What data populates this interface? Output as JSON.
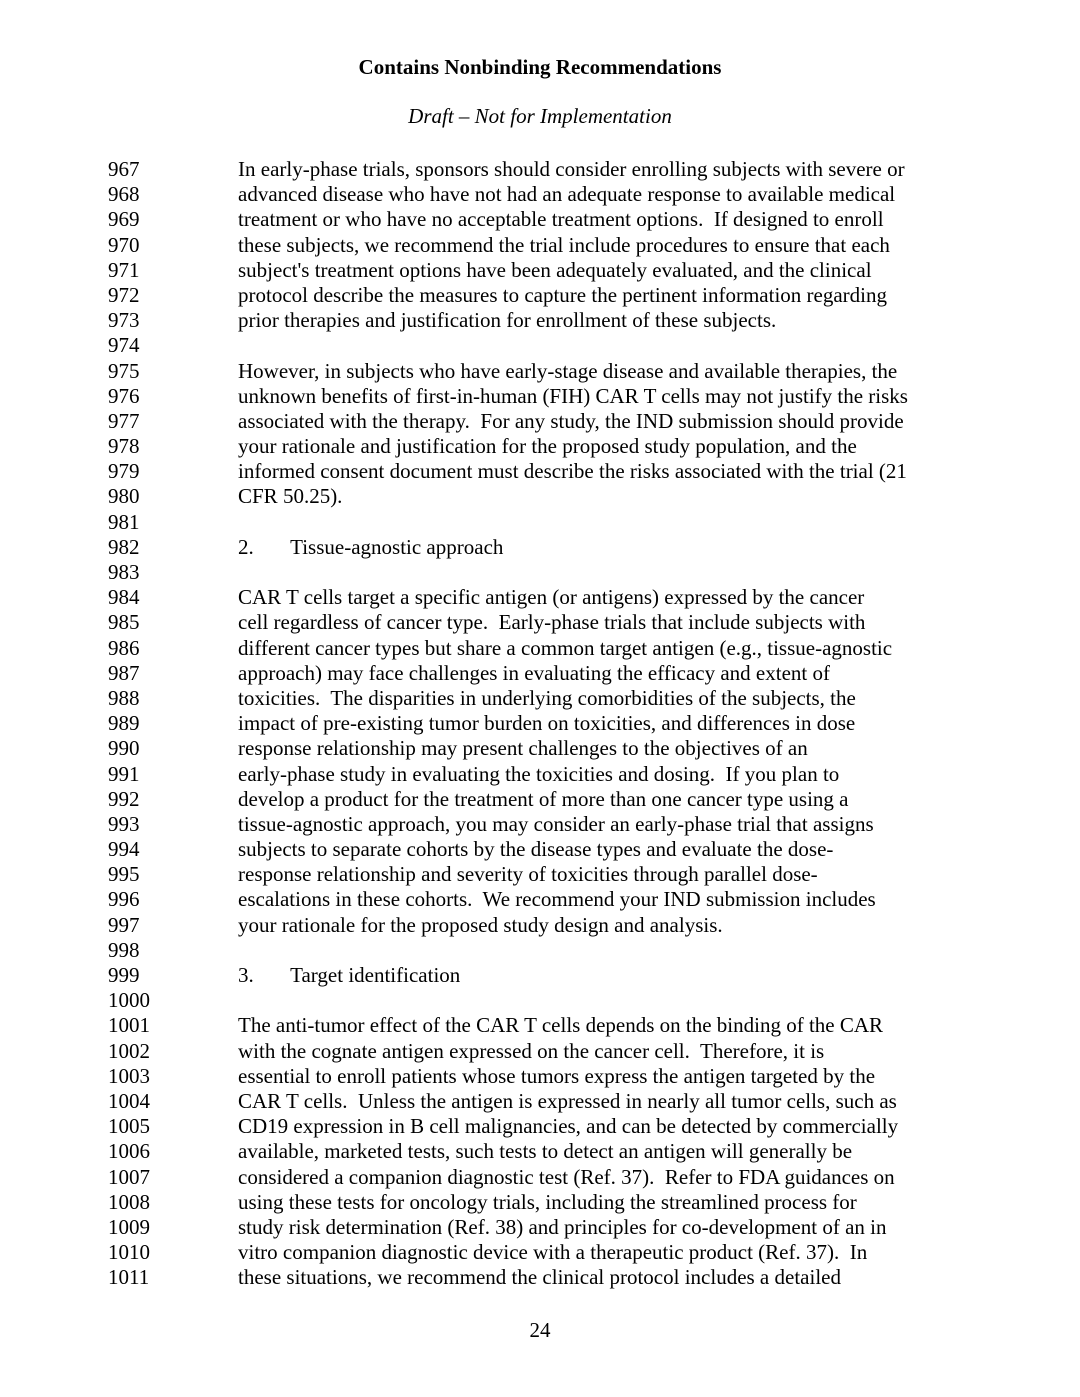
{
  "header": {
    "title_bold": "Contains Nonbinding Recommendations",
    "title_italic": "Draft – Not for Implementation"
  },
  "page_number": "24",
  "style": {
    "font_family": "Times New Roman",
    "font_size_pt": 16,
    "line_number_start": 967,
    "line_number_end": 1011,
    "background_color": "#ffffff",
    "text_color": "#000000"
  },
  "lines": [
    {
      "n": "967",
      "t": "In early-phase trials, sponsors should consider enrolling subjects with severe or"
    },
    {
      "n": "968",
      "t": "advanced disease who have not had an adequate response to available medical"
    },
    {
      "n": "969",
      "t": "treatment or who have no acceptable treatment options.  If designed to enroll"
    },
    {
      "n": "970",
      "t": "these subjects, we recommend the trial include procedures to ensure that each"
    },
    {
      "n": "971",
      "t": "subject's treatment options have been adequately evaluated, and the clinical"
    },
    {
      "n": "972",
      "t": "protocol describe the measures to capture the pertinent information regarding"
    },
    {
      "n": "973",
      "t": "prior therapies and justification for enrollment of these subjects."
    },
    {
      "n": "974",
      "t": ""
    },
    {
      "n": "975",
      "t": "However, in subjects who have early-stage disease and available therapies, the"
    },
    {
      "n": "976",
      "t": "unknown benefits of first-in-human (FIH) CAR T cells may not justify the risks"
    },
    {
      "n": "977",
      "t": "associated with the therapy.  For any study, the IND submission should provide"
    },
    {
      "n": "978",
      "t": "your rationale and justification for the proposed study population, and the"
    },
    {
      "n": "979",
      "t": "informed consent document must describe the risks associated with the trial (21"
    },
    {
      "n": "980",
      "t": "CFR 50.25)."
    },
    {
      "n": "981",
      "t": ""
    },
    {
      "n": "982",
      "t": "2.       Tissue-agnostic approach"
    },
    {
      "n": "983",
      "t": ""
    },
    {
      "n": "984",
      "t": "CAR T cells target a specific antigen (or antigens) expressed by the cancer"
    },
    {
      "n": "985",
      "t": "cell regardless of cancer type.  Early-phase trials that include subjects with"
    },
    {
      "n": "986",
      "t": "different cancer types but share a common target antigen (e.g., tissue-agnostic"
    },
    {
      "n": "987",
      "t": "approach) may face challenges in evaluating the efficacy and extent of"
    },
    {
      "n": "988",
      "t": "toxicities.  The disparities in underlying comorbidities of the subjects, the"
    },
    {
      "n": "989",
      "t": "impact of pre-existing tumor burden on toxicities, and differences in dose"
    },
    {
      "n": "990",
      "t": "response relationship may present challenges to the objectives of an"
    },
    {
      "n": "991",
      "t": "early-phase study in evaluating the toxicities and dosing.  If you plan to"
    },
    {
      "n": "992",
      "t": "develop a product for the treatment of more than one cancer type using a"
    },
    {
      "n": "993",
      "t": "tissue-agnostic approach, you may consider an early-phase trial that assigns"
    },
    {
      "n": "994",
      "t": "subjects to separate cohorts by the disease types and evaluate the dose-"
    },
    {
      "n": "995",
      "t": "response relationship and severity of toxicities through parallel dose-"
    },
    {
      "n": "996",
      "t": "escalations in these cohorts.  We recommend your IND submission includes"
    },
    {
      "n": "997",
      "t": "your rationale for the proposed study design and analysis."
    },
    {
      "n": "998",
      "t": ""
    },
    {
      "n": "999",
      "t": "3.       Target identification"
    },
    {
      "n": "1000",
      "t": ""
    },
    {
      "n": "1001",
      "t": "The anti-tumor effect of the CAR T cells depends on the binding of the CAR"
    },
    {
      "n": "1002",
      "t": "with the cognate antigen expressed on the cancer cell.  Therefore, it is"
    },
    {
      "n": "1003",
      "t": "essential to enroll patients whose tumors express the antigen targeted by the"
    },
    {
      "n": "1004",
      "t": "CAR T cells.  Unless the antigen is expressed in nearly all tumor cells, such as"
    },
    {
      "n": "1005",
      "t": "CD19 expression in B cell malignancies, and can be detected by commercially"
    },
    {
      "n": "1006",
      "t": "available, marketed tests, such tests to detect an antigen will generally be"
    },
    {
      "n": "1007",
      "t": "considered a companion diagnostic test (Ref. 37).  Refer to FDA guidances on"
    },
    {
      "n": "1008",
      "t": "using these tests for oncology trials, including the streamlined process for"
    },
    {
      "n": "1009",
      "t": "study risk determination (Ref. 38) and principles for co-development of an in"
    },
    {
      "n": "1010",
      "t": "vitro companion diagnostic device with a therapeutic product (Ref. 37).  In"
    },
    {
      "n": "1011",
      "t": "these situations, we recommend the clinical protocol includes a detailed"
    }
  ]
}
